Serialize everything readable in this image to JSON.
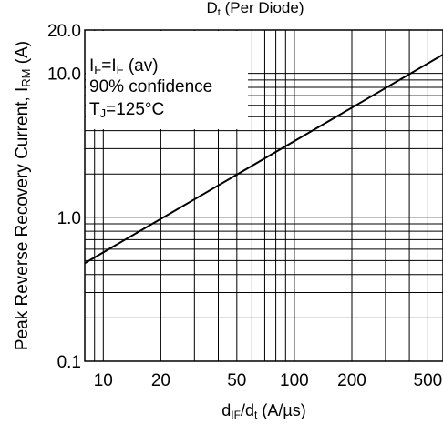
{
  "chart_data": {
    "type": "line",
    "title_main": "D",
    "title_sub": "t",
    "title_rest": "  (Per Diode)",
    "x_axis": {
      "scale": "log",
      "range": [
        8,
        600
      ],
      "ticks": [
        {
          "value": 10,
          "label": "10"
        },
        {
          "value": 20,
          "label": "20"
        },
        {
          "value": 50,
          "label": "50"
        },
        {
          "value": 100,
          "label": "100"
        },
        {
          "value": 200,
          "label": "200"
        },
        {
          "value": 500,
          "label": "500"
        }
      ],
      "label_parts": [
        {
          "t": "d",
          "sub": false
        },
        {
          "t": "IF",
          "sub": true
        },
        {
          "t": "/d",
          "sub": false
        },
        {
          "t": "t",
          "sub": true
        },
        {
          "t": " (A/µs)",
          "sub": false
        }
      ]
    },
    "y_axis": {
      "scale": "log",
      "range": [
        0.1,
        20
      ],
      "ticks": [
        {
          "value": 0.1,
          "label": "0.1"
        },
        {
          "value": 1,
          "label": "1.0"
        },
        {
          "value": 10,
          "label": "10.0"
        },
        {
          "value": 20,
          "label": "20.0"
        }
      ],
      "label_parts": [
        {
          "t": "Peak Reverse Recovery Current, I",
          "sub": false
        },
        {
          "t": "RM",
          "sub": true
        },
        {
          "t": " (A)",
          "sub": false
        }
      ]
    },
    "grid": true,
    "annotations": [
      {
        "parts": [
          {
            "t": "I",
            "sub": false
          },
          {
            "t": "F",
            "sub": true
          },
          {
            "t": "=I",
            "sub": false
          },
          {
            "t": "F",
            "sub": true
          },
          {
            "t": " (av)",
            "sub": false
          }
        ]
      },
      {
        "parts": [
          {
            "t": "90% confidence",
            "sub": false
          }
        ]
      },
      {
        "parts": [
          {
            "t": "T",
            "sub": false
          },
          {
            "t": "J",
            "sub": true
          },
          {
            "t": "=125°C",
            "sub": false
          }
        ]
      }
    ],
    "series": [
      {
        "x": [
          8,
          600
        ],
        "y": [
          0.48,
          13.5
        ]
      }
    ]
  }
}
